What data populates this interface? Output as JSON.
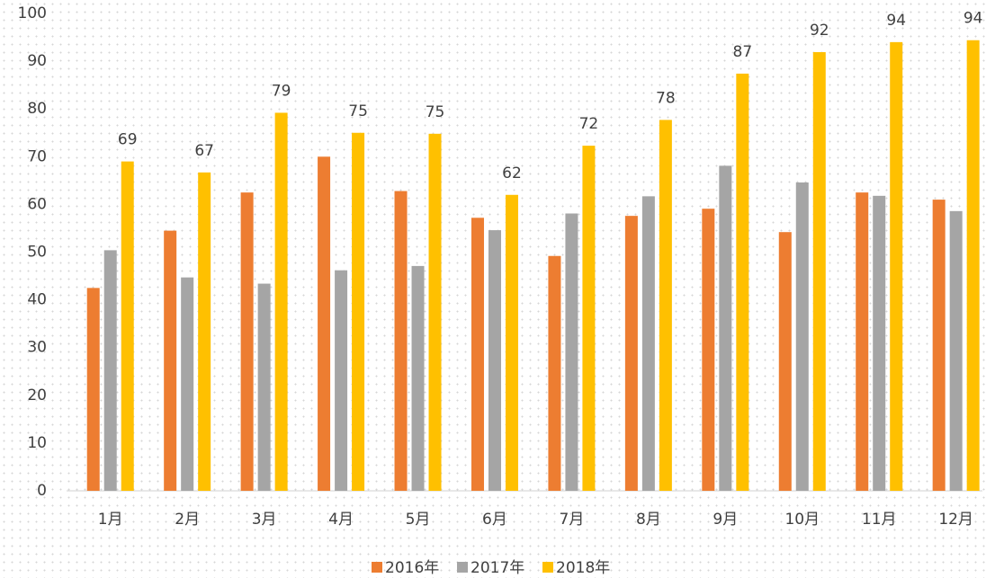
{
  "chart_data": {
    "type": "bar",
    "categories": [
      "1月",
      "2月",
      "3月",
      "4月",
      "5月",
      "6月",
      "7月",
      "8月",
      "9月",
      "10月",
      "11月",
      "12月"
    ],
    "series": [
      {
        "name": "2016年",
        "color": "#ed7d31",
        "values": [
          42.5,
          54.5,
          62.5,
          70,
          62.8,
          57.2,
          49.2,
          57.6,
          59.1,
          54.2,
          62.5,
          61
        ]
      },
      {
        "name": "2017年",
        "color": "#a5a5a5",
        "values": [
          50.4,
          44.7,
          43.4,
          46.2,
          47.1,
          54.6,
          58.1,
          61.7,
          68.1,
          64.6,
          61.8,
          58.6
        ]
      },
      {
        "name": "2018年",
        "color": "#ffc000",
        "values": [
          69,
          66.7,
          79.2,
          75,
          74.8,
          62,
          72.3,
          77.7,
          87.4,
          91.9,
          94,
          94.4
        ],
        "value_labels": [
          "69",
          "67",
          "79",
          "75",
          "75",
          "62",
          "72",
          "78",
          "87",
          "92",
          "94",
          "94"
        ]
      }
    ],
    "ylim": [
      0,
      100
    ],
    "yticks": [
      0,
      10,
      20,
      30,
      40,
      50,
      60,
      70,
      80,
      90,
      100
    ],
    "legend": "bottom"
  }
}
